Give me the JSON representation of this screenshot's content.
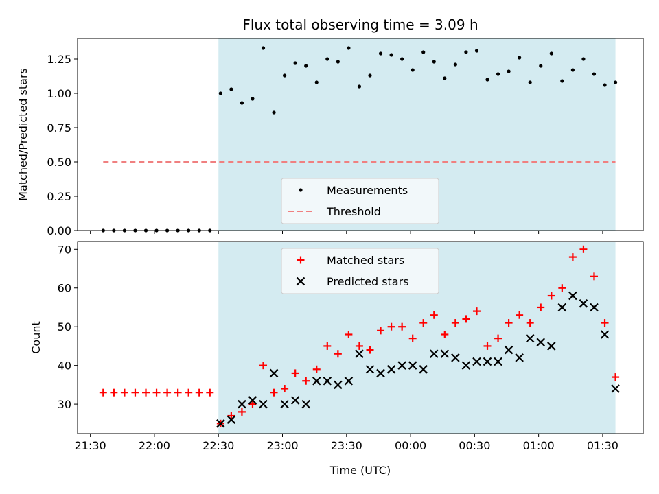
{
  "chart_data": [
    {
      "type": "scatter",
      "title": "Flux total observing time = 3.09 h",
      "ylabel": "Matched/Predicted stars",
      "xlabel": "",
      "ylim": [
        0,
        1.4
      ],
      "xlim": [
        "21:24",
        "01:49"
      ],
      "yticks": [
        0.0,
        0.25,
        0.5,
        0.75,
        1.0,
        1.25
      ],
      "ytick_labels": [
        "0.00",
        "0.25",
        "0.50",
        "0.75",
        "1.00",
        "1.25"
      ],
      "shaded_region": [
        "22:30",
        "01:36"
      ],
      "legend": {
        "placement": "lower-center",
        "entries": [
          "Measurements",
          "Threshold"
        ]
      },
      "grid": false,
      "series": [
        {
          "name": "Measurements",
          "marker": "dot",
          "color": "#000000",
          "x": [
            "21:36",
            "21:41",
            "21:46",
            "21:51",
            "21:56",
            "22:01",
            "22:06",
            "22:11",
            "22:16",
            "22:21",
            "22:26",
            "22:31",
            "22:36",
            "22:41",
            "22:46",
            "22:51",
            "22:56",
            "23:01",
            "23:06",
            "23:11",
            "23:16",
            "23:21",
            "23:26",
            "23:31",
            "23:36",
            "23:41",
            "23:46",
            "23:51",
            "23:56",
            "00:01",
            "00:06",
            "00:11",
            "00:16",
            "00:21",
            "00:26",
            "00:31",
            "00:36",
            "00:41",
            "00:46",
            "00:51",
            "00:56",
            "01:01",
            "01:06",
            "01:11",
            "01:16",
            "01:21",
            "01:26",
            "01:31",
            "01:36"
          ],
          "y": [
            0,
            0,
            0,
            0,
            0,
            0,
            0,
            0,
            0,
            0,
            0,
            1.0,
            1.03,
            0.93,
            0.96,
            1.33,
            0.86,
            1.13,
            1.22,
            1.2,
            1.08,
            1.25,
            1.23,
            1.33,
            1.05,
            1.13,
            1.29,
            1.28,
            1.25,
            1.17,
            1.3,
            1.23,
            1.11,
            1.21,
            1.3,
            1.31,
            1.1,
            1.14,
            1.16,
            1.26,
            1.08,
            1.2,
            1.29,
            1.09,
            1.17,
            1.25,
            1.14,
            1.06,
            1.08
          ]
        },
        {
          "name": "Threshold",
          "style": "dashed",
          "color": "#f08080",
          "x": [
            "21:36",
            "01:36"
          ],
          "y": [
            0.5,
            0.5
          ]
        }
      ]
    },
    {
      "type": "scatter",
      "title": "",
      "ylabel": "Count",
      "xlabel": "Time (UTC)",
      "ylim": [
        22.4,
        72
      ],
      "xlim": [
        "21:24",
        "01:49"
      ],
      "yticks": [
        30,
        40,
        50,
        60,
        70
      ],
      "ytick_labels": [
        "30",
        "40",
        "50",
        "60",
        "70"
      ],
      "xticks": [
        "21:30",
        "22:00",
        "22:30",
        "23:00",
        "23:30",
        "00:00",
        "00:30",
        "01:00",
        "01:30"
      ],
      "shaded_region": [
        "22:30",
        "01:36"
      ],
      "legend": {
        "placement": "top-center",
        "entries": [
          "Matched stars",
          "Predicted stars"
        ]
      },
      "grid": false,
      "series": [
        {
          "name": "Matched stars",
          "marker": "plus",
          "color": "#ff0000",
          "x": [
            "21:36",
            "21:41",
            "21:46",
            "21:51",
            "21:56",
            "22:01",
            "22:06",
            "22:11",
            "22:16",
            "22:21",
            "22:26",
            "22:31",
            "22:36",
            "22:41",
            "22:46",
            "22:51",
            "22:56",
            "23:01",
            "23:06",
            "23:11",
            "23:16",
            "23:21",
            "23:26",
            "23:31",
            "23:36",
            "23:41",
            "23:46",
            "23:51",
            "23:56",
            "00:01",
            "00:06",
            "00:11",
            "00:16",
            "00:21",
            "00:26",
            "00:31",
            "00:36",
            "00:41",
            "00:46",
            "00:51",
            "00:56",
            "01:01",
            "01:06",
            "01:11",
            "01:16",
            "01:21",
            "01:26",
            "01:31",
            "01:36"
          ],
          "y": [
            33,
            33,
            33,
            33,
            33,
            33,
            33,
            33,
            33,
            33,
            33,
            25,
            27,
            28,
            30,
            40,
            33,
            34,
            38,
            36,
            39,
            45,
            43,
            48,
            45,
            44,
            49,
            50,
            50,
            47,
            51,
            53,
            48,
            51,
            52,
            54,
            45,
            47,
            51,
            53,
            51,
            55,
            58,
            60,
            68,
            70,
            63,
            51,
            37
          ]
        },
        {
          "name": "Predicted stars",
          "marker": "x",
          "color": "#000000",
          "x": [
            "22:31",
            "22:36",
            "22:41",
            "22:46",
            "22:51",
            "22:56",
            "23:01",
            "23:06",
            "23:11",
            "23:16",
            "23:21",
            "23:26",
            "23:31",
            "23:36",
            "23:41",
            "23:46",
            "23:51",
            "23:56",
            "00:01",
            "00:06",
            "00:11",
            "00:16",
            "00:21",
            "00:26",
            "00:31",
            "00:36",
            "00:41",
            "00:46",
            "00:51",
            "00:56",
            "01:01",
            "01:06",
            "01:11",
            "01:16",
            "01:21",
            "01:26",
            "01:31",
            "01:36"
          ],
          "y": [
            25,
            26,
            30,
            31,
            30,
            38,
            30,
            31,
            30,
            36,
            36,
            35,
            36,
            43,
            39,
            38,
            39,
            40,
            40,
            39,
            43,
            43,
            42,
            40,
            41,
            41,
            41,
            44,
            42,
            47,
            46,
            45,
            55,
            58,
            56,
            55,
            48,
            34
          ]
        }
      ]
    }
  ],
  "colors": {
    "shade": "#d4ebf1",
    "threshold": "#f08080",
    "matched": "#ff0000",
    "predicted": "#000000"
  }
}
